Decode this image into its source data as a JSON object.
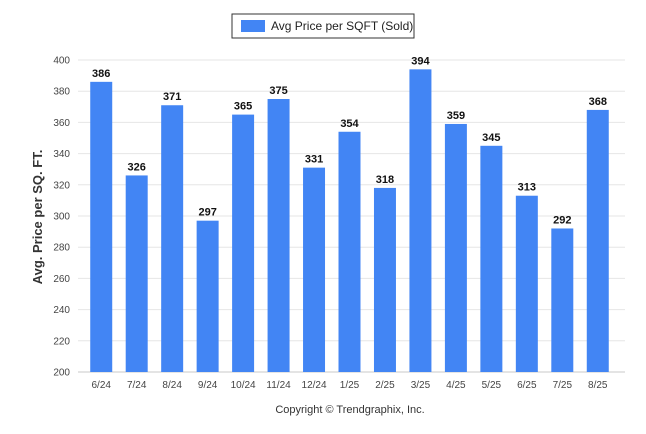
{
  "chart_data": {
    "type": "bar",
    "categories": [
      "6/24",
      "7/24",
      "8/24",
      "9/24",
      "10/24",
      "11/24",
      "12/24",
      "1/25",
      "2/25",
      "3/25",
      "4/25",
      "5/25",
      "6/25",
      "7/25",
      "8/25"
    ],
    "series": [
      {
        "name": "Avg Price per SQFT (Sold)",
        "values": [
          386,
          326,
          371,
          297,
          365,
          375,
          331,
          354,
          318,
          394,
          359,
          345,
          313,
          292,
          368
        ],
        "color": "#4285f4"
      }
    ],
    "title": "",
    "xlabel": "",
    "ylabel": "Avg. Price per SQ. FT.",
    "ylim": [
      200,
      400
    ],
    "yticks": [
      200,
      220,
      240,
      260,
      280,
      300,
      320,
      340,
      360,
      380,
      400
    ],
    "grid": true,
    "legend": "top-center",
    "data_labels": true
  },
  "footer": {
    "copyright": "Copyright © Trendgraphix, Inc."
  }
}
